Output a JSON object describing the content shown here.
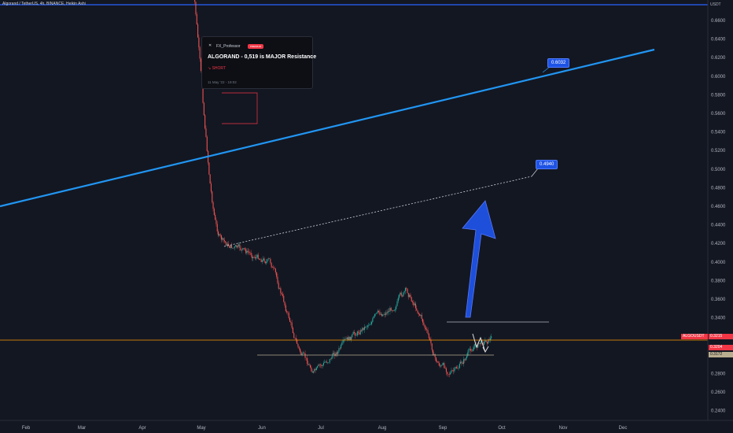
{
  "header": {
    "title": "Algorand / TetherUS, 4h, BINANCE, Heikin Ashi"
  },
  "price_axis": {
    "currency": "USDT",
    "ticks": [
      "0.6600",
      "0.6400",
      "0.6200",
      "0.6000",
      "0.5800",
      "0.5600",
      "0.5400",
      "0.5200",
      "0.5000",
      "0.4800",
      "0.4600",
      "0.4400",
      "0.4200",
      "0.4000",
      "0.3800",
      "0.3600",
      "0.3400",
      "0.3200",
      "0.3000",
      "0.2800",
      "0.2600",
      "0.2400"
    ]
  },
  "time_axis": {
    "ticks": [
      "Feb",
      "Mar",
      "Apr",
      "May",
      "Jun",
      "Jul",
      "Aug",
      "Sep",
      "Oct",
      "Nov",
      "Dec"
    ]
  },
  "idea_card": {
    "author": "FX_Professor",
    "badge": "PREMIUM",
    "headline": "ALGORAND - 0,519 is MAJOR Resistance",
    "direction": "SHORT",
    "date": "11 May '22 - 19:02"
  },
  "annotations": {
    "trendline_label": "0.6032",
    "dotted_target_label": "0.4940"
  },
  "price_tags": [
    {
      "text": "ALGOUSDT",
      "color": "#f23645"
    },
    {
      "text": "0.3215",
      "color": "#f23645"
    },
    {
      "text": "0.3204",
      "color": "#f23645"
    },
    {
      "text": "0.3172",
      "color": "#b9ad8f"
    }
  ],
  "colors": {
    "background": "#131722",
    "bull": "#26a69a",
    "bear": "#ef5350",
    "trendline": "#2196f3",
    "horizontal_top": "#2962ff",
    "orange_line": "#ff9800",
    "arrow": "#1e53e5"
  },
  "chart_data": {
    "type": "candlestick",
    "title": "Algorand / TetherUS, 4h, BINANCE, Heikin Ashi",
    "ylim": [
      0.23,
      0.675
    ],
    "x_ticks": [
      "Feb",
      "Mar",
      "Apr",
      "May",
      "Jun",
      "Jul",
      "Aug",
      "Sep",
      "Oct",
      "Nov",
      "Dec"
    ],
    "price_path": [
      [
        "May",
        0.7
      ],
      [
        "May",
        0.62
      ],
      [
        "May",
        0.54
      ],
      [
        "May",
        0.47
      ],
      [
        "May",
        0.43
      ],
      [
        "May",
        0.42
      ],
      [
        "Jun",
        0.4
      ],
      [
        "Jun",
        0.35
      ],
      [
        "Jun",
        0.3
      ],
      [
        "Jun",
        0.28
      ],
      [
        "Jul",
        0.3
      ],
      [
        "Jul",
        0.32
      ],
      [
        "Jul",
        0.34
      ],
      [
        "Aug",
        0.35
      ],
      [
        "Aug",
        0.37
      ],
      [
        "Aug",
        0.34
      ],
      [
        "Aug",
        0.29
      ],
      [
        "Sep",
        0.28
      ],
      [
        "Sep",
        0.31
      ],
      [
        "Sep",
        0.32
      ]
    ],
    "levels": {
      "top_horizontal": 0.672,
      "resistance_box_top": 0.58,
      "resistance_box_bottom": 0.55,
      "support_line": 0.302,
      "short_line": 0.337,
      "current_price": 0.3215
    },
    "trendline": {
      "from": [
        0.46,
        "Jan"
      ],
      "to": [
        0.606,
        "Dec"
      ],
      "label": "0.6032"
    },
    "dotted_line": {
      "from": [
        0.415,
        "May"
      ],
      "to": [
        0.494,
        "Oct"
      ],
      "label": "0.4940"
    }
  }
}
